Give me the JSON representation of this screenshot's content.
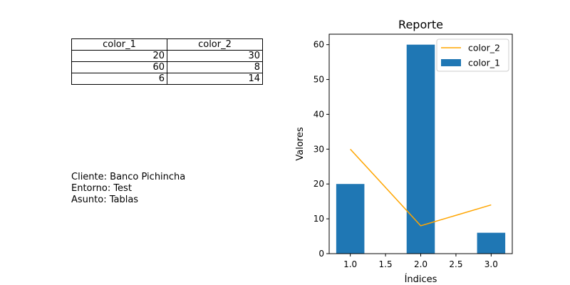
{
  "table": {
    "headers": [
      "color_1",
      "color_2"
    ],
    "rows": [
      [
        "20",
        "30"
      ],
      [
        "60",
        "8"
      ],
      [
        "6",
        "14"
      ]
    ]
  },
  "info": {
    "client": "Cliente: Banco Pichincha",
    "environment": "Entorno: Test",
    "subject": "Asunto: Tablas"
  },
  "chart_data": {
    "type": "bar",
    "title": "Reporte",
    "xlabel": "Índices",
    "ylabel": "Valores",
    "xlim": [
      0.7,
      3.3
    ],
    "ylim": [
      0,
      63
    ],
    "xticks": [
      1.0,
      1.5,
      2.0,
      2.5,
      3.0
    ],
    "xtick_labels": [
      "1.0",
      "1.5",
      "2.0",
      "2.5",
      "3.0"
    ],
    "yticks": [
      0,
      10,
      20,
      30,
      40,
      50,
      60
    ],
    "ytick_labels": [
      "0",
      "10",
      "20",
      "30",
      "40",
      "50",
      "60"
    ],
    "x": [
      1,
      2,
      3
    ],
    "series": [
      {
        "name": "color_1",
        "kind": "bar",
        "values": [
          20,
          60,
          6
        ],
        "color": "#1f77b4",
        "bar_width": 0.4
      },
      {
        "name": "color_2",
        "kind": "line",
        "values": [
          30,
          8,
          14
        ],
        "color": "#ffa500"
      }
    ],
    "legend": {
      "position": "top-right"
    },
    "grid": false
  }
}
